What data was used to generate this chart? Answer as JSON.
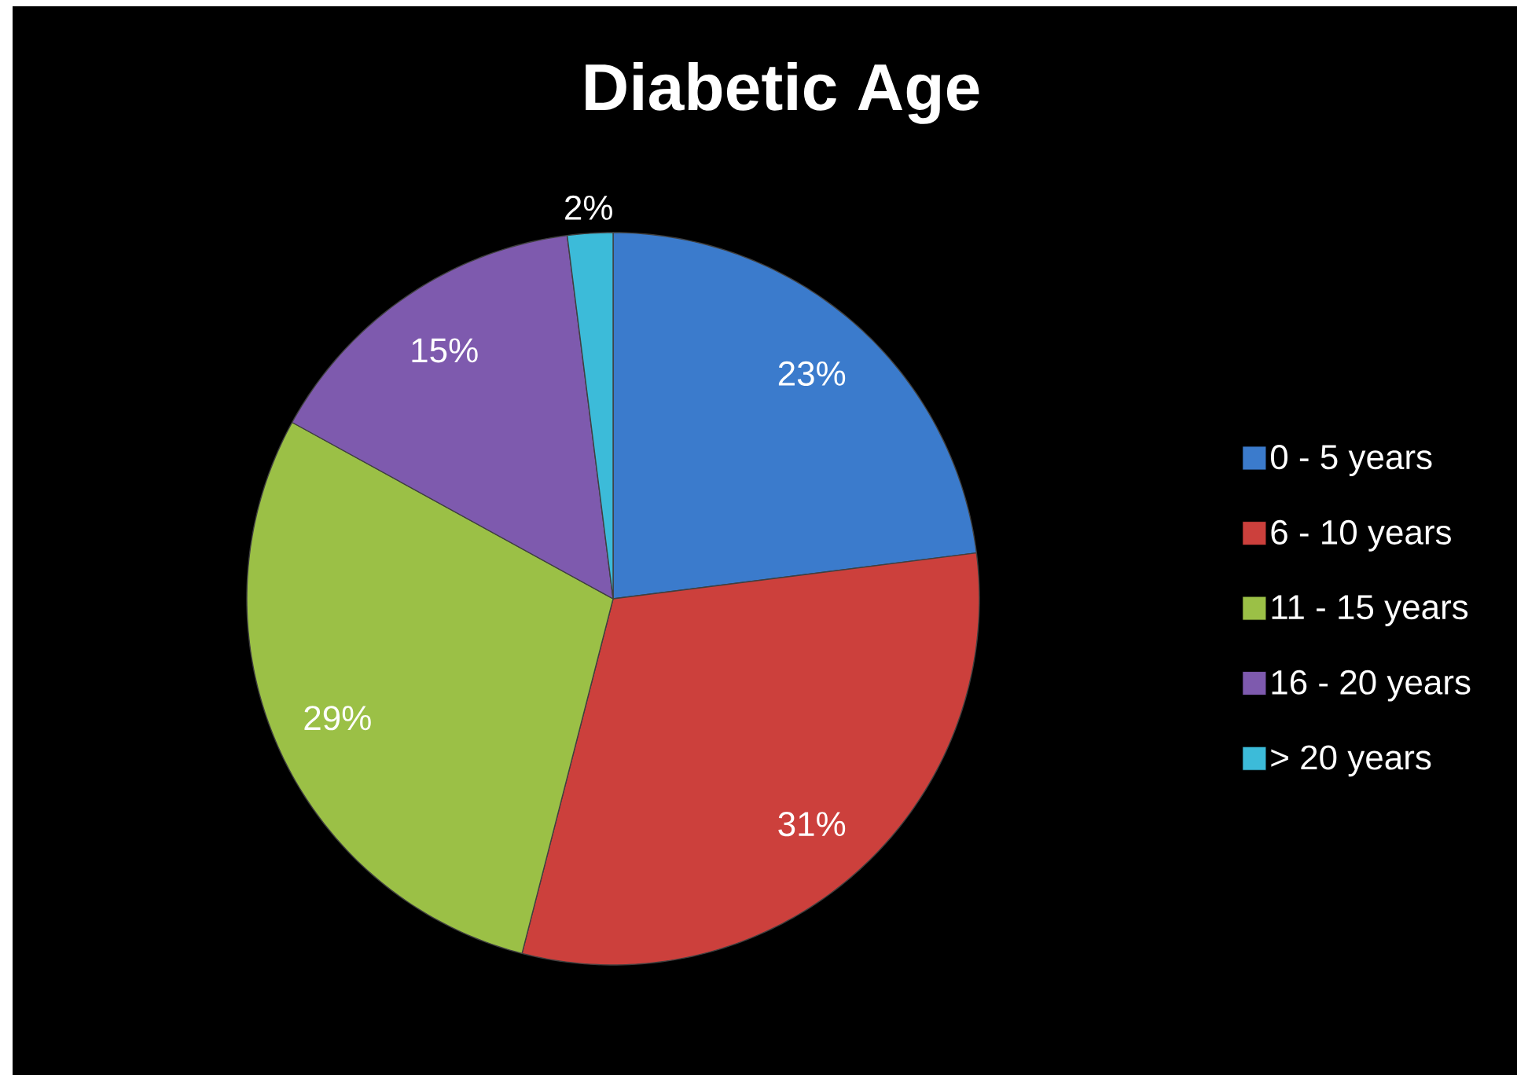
{
  "chart_data": {
    "type": "pie",
    "title": "Diabetic Age",
    "categories": [
      "0 - 5 years",
      "6 - 10 years",
      "11 - 15 years",
      "16 - 20 years",
      "> 20 years"
    ],
    "values": [
      23,
      31,
      29,
      15,
      2
    ],
    "value_labels": [
      "23%",
      "31%",
      "29%",
      "15%",
      "2%"
    ],
    "colors": [
      "#3b7bcc",
      "#cc403c",
      "#9bc046",
      "#7e5aae",
      "#3cbbd9"
    ],
    "legend": "right"
  }
}
